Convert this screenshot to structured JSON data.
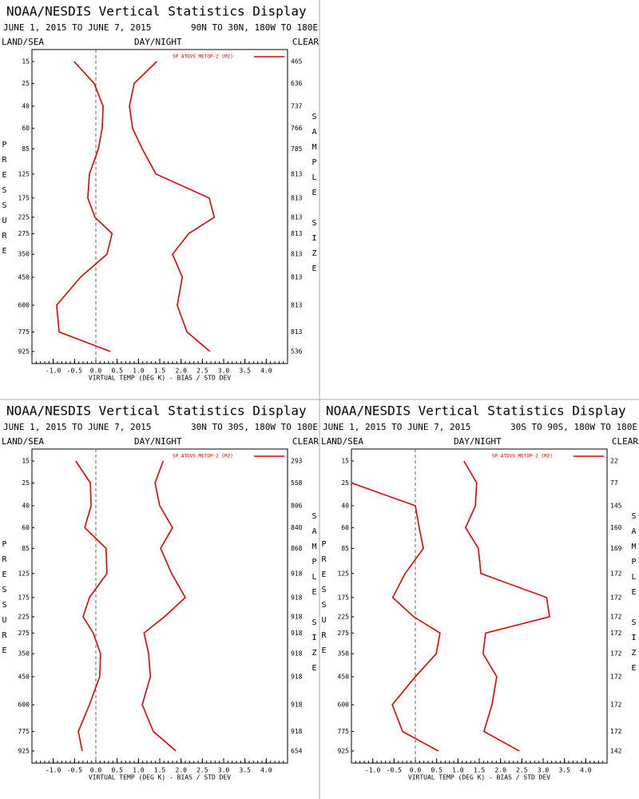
{
  "chart_data": [
    {
      "type": "line",
      "title": "NOAA/NESDIS Vertical Statistics Display",
      "subtitle": "JUNE 1, 2015 TO JUNE 7, 2015",
      "region": "90N TO 30N, 180W TO 180E",
      "land_sea_label": "LAND/SEA",
      "day_night_label": "DAY/NIGHT",
      "clear_label": "CLEAR",
      "xlabel": "VIRTUAL TEMP (DEG K) - BIAS / STD DEV",
      "ylabel": "PRESSURE",
      "y2label": "SAMPLE SIZE",
      "y": [
        15,
        25,
        40,
        60,
        85,
        125,
        175,
        225,
        275,
        350,
        450,
        600,
        775,
        925
      ],
      "ylim": [
        11,
        1028
      ],
      "xlim": [
        -1.5,
        4.5
      ],
      "xticks": [
        {
          "value": -1,
          "label": "-1.0"
        },
        -0.5,
        {
          "value": 0,
          "label": "0.0"
        },
        0.5,
        {
          "value": 1,
          "label": "1.0"
        },
        1.5,
        {
          "value": 2,
          "label": "2.0"
        },
        2.5,
        {
          "value": 3,
          "label": "3.0"
        },
        3.5,
        {
          "value": 4,
          "label": "4.0"
        }
      ],
      "refline": 0,
      "sample_size": [
        465,
        636,
        737,
        766,
        785,
        813,
        813,
        813,
        813,
        813,
        813,
        813,
        813,
        536
      ],
      "series": [
        {
          "name": "SP ATOVS METOP-2 (M2)",
          "color": "#e00000",
          "bias": [
            -0.51,
            -0.04,
            0.17,
            0.15,
            0.06,
            -0.15,
            -0.19,
            -0.02,
            0.38,
            0.26,
            -0.36,
            -0.92,
            -0.86,
            0.34
          ],
          "std_dev": [
            1.43,
            0.9,
            0.79,
            0.86,
            1.09,
            1.41,
            2.66,
            2.78,
            2.18,
            1.8,
            2.03,
            1.91,
            2.14,
            2.68
          ]
        }
      ]
    },
    {
      "type": "line",
      "title": "NOAA/NESDIS Vertical Statistics Display",
      "subtitle": "JUNE 1, 2015 TO JUNE 7, 2015",
      "region": "30N TO 30S, 180W TO 180E",
      "land_sea_label": "LAND/SEA",
      "day_night_label": "DAY/NIGHT",
      "clear_label": "CLEAR",
      "xlabel": "VIRTUAL TEMP (DEG K) - BIAS / STD DEV",
      "ylabel": "PRESSURE",
      "y2label": "SAMPLE SIZE",
      "y": [
        15,
        25,
        40,
        60,
        85,
        125,
        175,
        225,
        275,
        350,
        450,
        600,
        775,
        925
      ],
      "ylim": [
        11,
        1028
      ],
      "xlim": [
        -1.5,
        4.5
      ],
      "xticks": [
        {
          "value": -1,
          "label": "-1.0"
        },
        -0.5,
        {
          "value": 0,
          "label": "0.0"
        },
        0.5,
        {
          "value": 1,
          "label": "1.0"
        },
        1.5,
        {
          "value": 2,
          "label": "2.0"
        },
        2.5,
        {
          "value": 3,
          "label": "3.0"
        },
        3.5,
        {
          "value": 4,
          "label": "4.0"
        }
      ],
      "refline": 0,
      "sample_size": [
        293,
        558,
        806,
        840,
        868,
        918,
        918,
        918,
        918,
        918,
        918,
        918,
        918,
        654
      ],
      "series": [
        {
          "name": "SP ATOVS METOP-2 (M2)",
          "color": "#e00000",
          "bias": [
            -0.47,
            -0.13,
            -0.11,
            -0.26,
            0.24,
            0.26,
            -0.15,
            -0.3,
            -0.06,
            0.11,
            0.09,
            -0.15,
            -0.41,
            -0.32
          ],
          "std_dev": [
            1.58,
            1.39,
            1.5,
            1.8,
            1.52,
            1.78,
            2.1,
            1.61,
            1.13,
            1.24,
            1.28,
            1.09,
            1.35,
            1.88
          ]
        }
      ]
    },
    {
      "type": "line",
      "title": "NOAA/NESDIS Vertical Statistics Display",
      "subtitle": "JUNE 1, 2015 TO JUNE 7, 2015",
      "region": "30S TO 90S, 180W TO 180E",
      "land_sea_label": "LAND/SEA",
      "day_night_label": "DAY/NIGHT",
      "clear_label": "CLEAR",
      "xlabel": "VIRTUAL TEMP (DEG K) - BIAS / STD DEV",
      "ylabel": "PRESSURE",
      "y2label": "SAMPLE SIZE",
      "y": [
        15,
        25,
        40,
        60,
        85,
        125,
        175,
        225,
        275,
        350,
        450,
        600,
        775,
        925
      ],
      "ylim": [
        11,
        1028
      ],
      "xlim": [
        -1.5,
        4.5
      ],
      "xticks": [
        {
          "value": -1,
          "label": "-1.0"
        },
        -0.5,
        {
          "value": 0,
          "label": "0.0"
        },
        0.5,
        {
          "value": 1,
          "label": "1.0"
        },
        1.5,
        {
          "value": 2,
          "label": "2.0"
        },
        2.5,
        {
          "value": 3,
          "label": "3.0"
        },
        3.5,
        {
          "value": 4,
          "label": "4.0"
        }
      ],
      "refline": 0,
      "sample_size": [
        22,
        77,
        145,
        160,
        169,
        172,
        172,
        172,
        172,
        172,
        172,
        172,
        172,
        142
      ],
      "series": [
        {
          "name": "SP ATOVS METOP-2 (M2)",
          "color": "#e00000",
          "bias": [
            null,
            -1.5,
            0,
            0.09,
            0.19,
            -0.24,
            -0.53,
            -0.04,
            0.58,
            0.49,
            0,
            -0.54,
            -0.3,
            0.54
          ],
          "std_dev": [
            1.14,
            1.44,
            1.41,
            1.18,
            1.48,
            1.54,
            3.08,
            3.15,
            1.65,
            1.59,
            1.91,
            1.8,
            1.61,
            2.44
          ]
        }
      ]
    }
  ]
}
